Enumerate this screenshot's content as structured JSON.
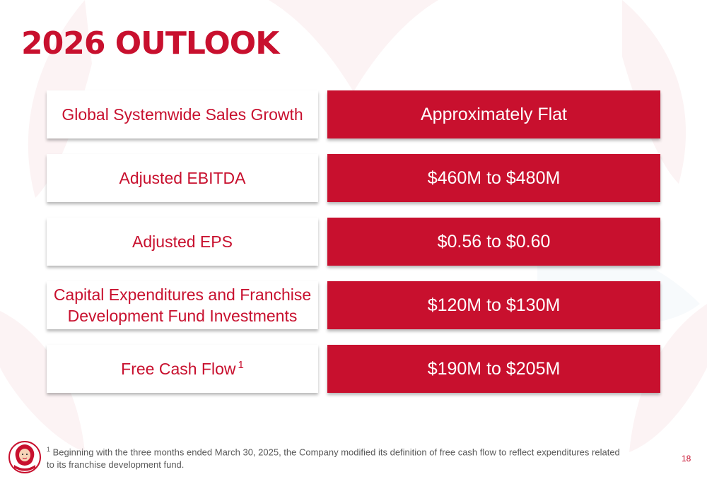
{
  "slide": {
    "title": "2026 OUTLOOK",
    "page_number": "18",
    "footnote_marker": "1",
    "footnote_line1": "Beginning with the three months ended March 30, 2025, the Company modified its definition of free cash flow to reflect expenditures related",
    "footnote_line2": "to its franchise development fund."
  },
  "rows": [
    {
      "label": "Global Systemwide Sales Growth",
      "value": "Approximately Flat"
    },
    {
      "label": "Adjusted EBITDA",
      "value": "$460M to $480M"
    },
    {
      "label": "Adjusted EPS",
      "value": "$0.56 to $0.60"
    },
    {
      "label_line1": "Capital Expenditures and Franchise",
      "label_line2": "Development Fund Investments",
      "value": "$120M to $130M"
    },
    {
      "label": "Free Cash Flow",
      "label_sup": "1",
      "value": "$190M to $205M"
    }
  ],
  "colors": {
    "brand_red": "#c8102e",
    "background": "#ffffff",
    "footnote_gray": "#595959"
  },
  "logo_icon": "wendys-logo-icon"
}
